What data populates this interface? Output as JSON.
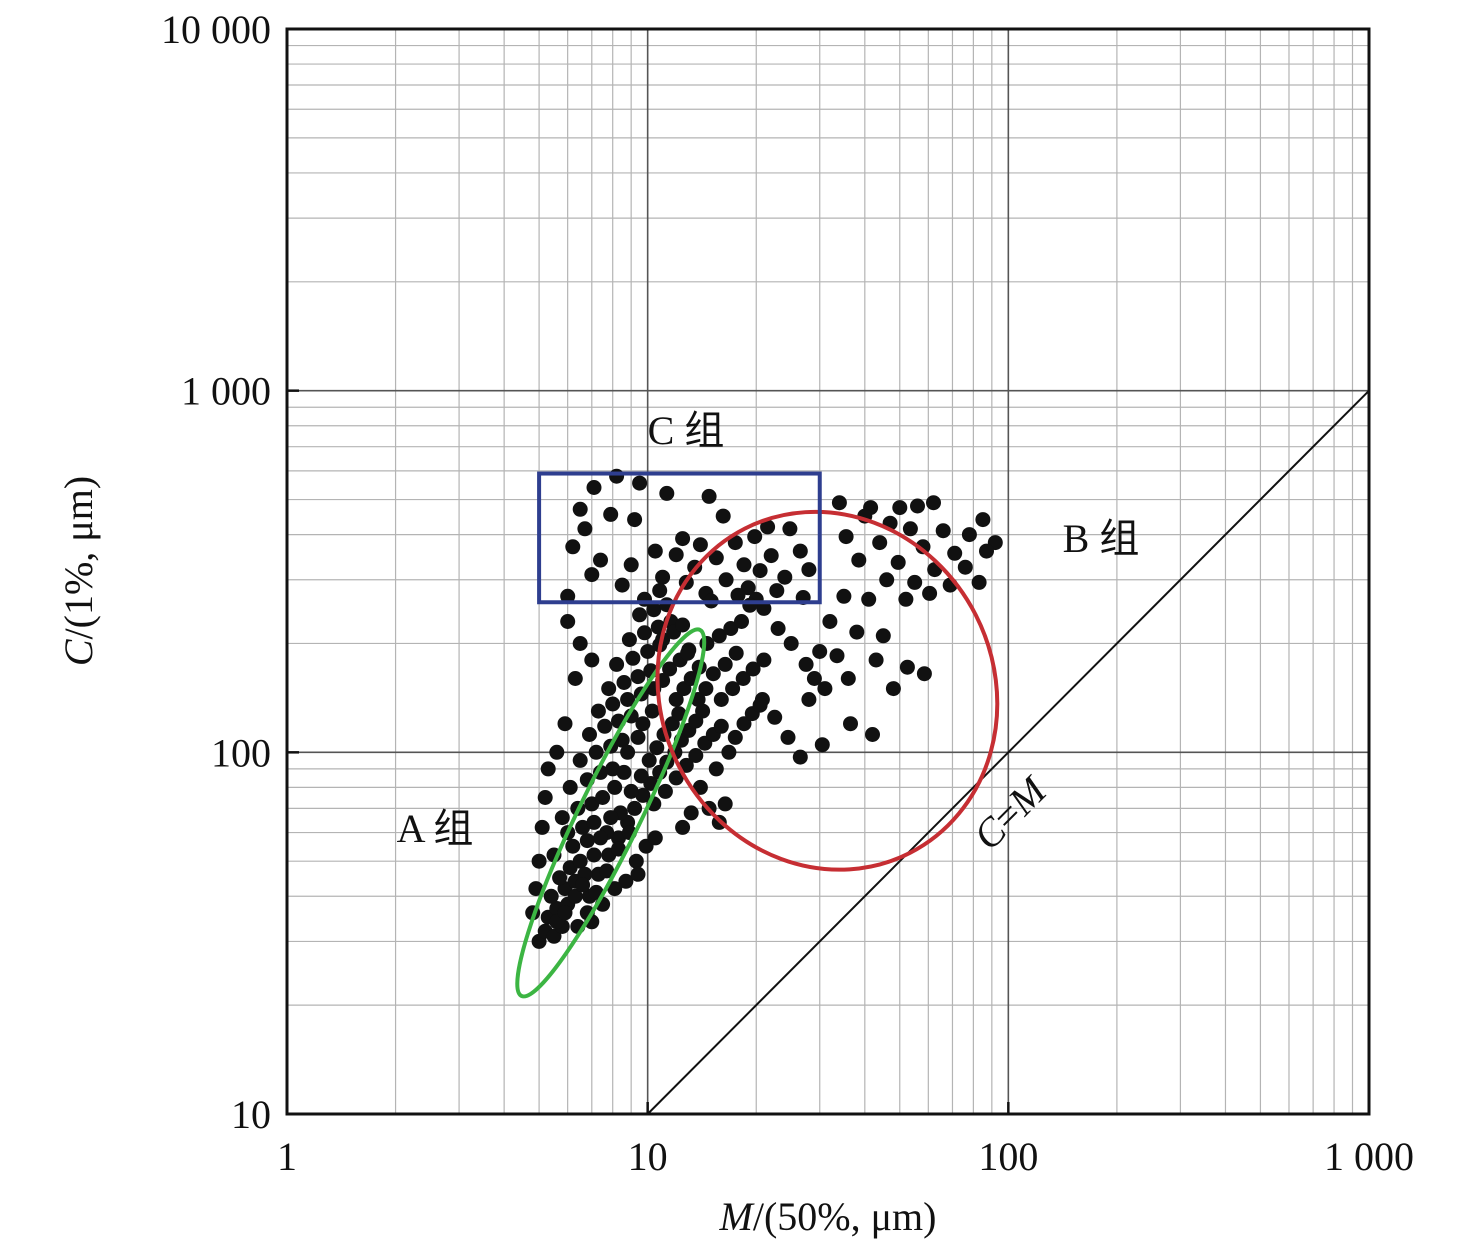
{
  "chart_data": {
    "type": "scatter",
    "title": "",
    "x_scale": "log",
    "y_scale": "log",
    "xlim": [
      1,
      1000
    ],
    "ylim": [
      10,
      10000
    ],
    "grid": true,
    "x_ticks": [
      {
        "value": 1,
        "label": "1"
      },
      {
        "value": 10,
        "label": "10"
      },
      {
        "value": 100,
        "label": "100"
      },
      {
        "value": 1000,
        "label": "1 000"
      }
    ],
    "y_ticks": [
      {
        "value": 10,
        "label": "10"
      },
      {
        "value": 100,
        "label": "100"
      },
      {
        "value": 1000,
        "label": "1 000"
      },
      {
        "value": 10000,
        "label": "10 000"
      }
    ],
    "xlabel": {
      "var": "M",
      "rest": "/(50%, μm)"
    },
    "ylabel": {
      "var": "C",
      "rest": "/(1%, μm)"
    },
    "reference_line": {
      "label_c": "C",
      "label_eq": "=",
      "label_m": "M",
      "from": [
        10,
        10
      ],
      "to": [
        1000,
        1000
      ]
    },
    "groups": [
      {
        "id": "A",
        "label": "A 组",
        "shape": "ellipse",
        "color": "#3cb543",
        "center": [
          7.9,
          68
        ],
        "x_range": [
          4.6,
          13.6
        ],
        "y_range": [
          23,
          235
        ],
        "tilt_deg": -64
      },
      {
        "id": "B",
        "label": "B 组",
        "shape": "ellipse",
        "color": "#c62e33",
        "center": [
          31.5,
          148
        ],
        "x_range": [
          11.2,
          98
        ],
        "y_range": [
          49,
          478
        ],
        "tilt_deg": -27
      },
      {
        "id": "C",
        "label": "C 组",
        "shape": "rectangle",
        "color": "#2e3e8f",
        "x_range": [
          5,
          30
        ],
        "y_range": [
          260,
          590
        ]
      }
    ],
    "series": [
      {
        "marker": "circle",
        "color": "#111111",
        "points": [
          [
            8.2,
            580
          ],
          [
            7.1,
            540
          ],
          [
            9.5,
            555
          ],
          [
            11.3,
            520
          ],
          [
            14.8,
            510
          ],
          [
            6.5,
            470
          ],
          [
            7.9,
            455
          ],
          [
            9.2,
            440
          ],
          [
            16.2,
            450
          ],
          [
            21.5,
            420
          ],
          [
            24.8,
            415
          ],
          [
            6.7,
            415
          ],
          [
            12.5,
            390
          ],
          [
            14.0,
            375
          ],
          [
            17.5,
            380
          ],
          [
            19.8,
            395
          ],
          [
            6.2,
            370
          ],
          [
            10.5,
            360
          ],
          [
            12.0,
            352
          ],
          [
            15.5,
            345
          ],
          [
            22.0,
            350
          ],
          [
            26.5,
            360
          ],
          [
            7.4,
            340
          ],
          [
            9.0,
            330
          ],
          [
            13.5,
            325
          ],
          [
            18.5,
            330
          ],
          [
            20.5,
            318
          ],
          [
            28.0,
            320
          ],
          [
            7.0,
            310
          ],
          [
            11.0,
            305
          ],
          [
            16.5,
            300
          ],
          [
            24.0,
            305
          ],
          [
            8.5,
            290
          ],
          [
            12.8,
            295
          ],
          [
            19.0,
            285
          ],
          [
            22.8,
            280
          ],
          [
            6.0,
            270
          ],
          [
            9.8,
            265
          ],
          [
            14.5,
            275
          ],
          [
            17.8,
            272
          ],
          [
            27.0,
            268
          ],
          [
            10.8,
            280
          ],
          [
            15.0,
            262
          ],
          [
            20.0,
            265
          ],
          [
            34.0,
            490
          ],
          [
            41.5,
            475
          ],
          [
            50.0,
            475
          ],
          [
            56.0,
            480
          ],
          [
            62.0,
            490
          ],
          [
            85.0,
            440
          ],
          [
            40.0,
            450
          ],
          [
            47.0,
            430
          ],
          [
            53.5,
            415
          ],
          [
            66.0,
            410
          ],
          [
            78.0,
            400
          ],
          [
            92.0,
            380
          ],
          [
            35.5,
            395
          ],
          [
            44.0,
            380
          ],
          [
            58.0,
            370
          ],
          [
            71.0,
            355
          ],
          [
            87.0,
            360
          ],
          [
            38.5,
            340
          ],
          [
            49.5,
            335
          ],
          [
            62.5,
            320
          ],
          [
            76.0,
            325
          ],
          [
            46.0,
            300
          ],
          [
            55.0,
            295
          ],
          [
            69.0,
            290
          ],
          [
            35.0,
            270
          ],
          [
            41.0,
            265
          ],
          [
            52.0,
            265
          ],
          [
            60.5,
            275
          ],
          [
            83.0,
            295
          ],
          [
            32.0,
            230
          ],
          [
            38.0,
            215
          ],
          [
            45.0,
            210
          ],
          [
            43.0,
            180
          ],
          [
            52.5,
            172
          ],
          [
            36.0,
            160
          ],
          [
            48.0,
            150
          ],
          [
            58.5,
            165
          ],
          [
            31.0,
            150
          ],
          [
            28.0,
            140
          ],
          [
            36.5,
            120
          ],
          [
            42.0,
            112
          ],
          [
            30.5,
            105
          ],
          [
            22.5,
            125
          ],
          [
            24.5,
            110
          ],
          [
            26.5,
            97
          ],
          [
            20.8,
            140
          ],
          [
            27.5,
            175
          ],
          [
            25.0,
            200
          ],
          [
            23.0,
            220
          ],
          [
            21.0,
            250
          ],
          [
            19.2,
            255
          ],
          [
            30.0,
            190
          ],
          [
            33.5,
            185
          ],
          [
            29.0,
            160
          ],
          [
            5.0,
            30
          ],
          [
            5.2,
            32
          ],
          [
            5.5,
            31
          ],
          [
            5.8,
            33
          ],
          [
            5.3,
            35
          ],
          [
            5.6,
            37
          ],
          [
            6.0,
            38
          ],
          [
            5.4,
            40
          ],
          [
            5.9,
            42
          ],
          [
            6.3,
            44
          ],
          [
            5.7,
            45
          ],
          [
            6.1,
            48
          ],
          [
            6.5,
            50
          ],
          [
            5.5,
            52
          ],
          [
            6.2,
            55
          ],
          [
            6.8,
            57
          ],
          [
            6.0,
            60
          ],
          [
            6.6,
            62
          ],
          [
            7.1,
            64
          ],
          [
            5.8,
            66
          ],
          [
            6.4,
            70
          ],
          [
            7.0,
            72
          ],
          [
            7.5,
            75
          ],
          [
            6.1,
            80
          ],
          [
            6.8,
            84
          ],
          [
            7.4,
            88
          ],
          [
            8.0,
            90
          ],
          [
            6.5,
            95
          ],
          [
            7.2,
            100
          ],
          [
            7.9,
            104
          ],
          [
            8.5,
            108
          ],
          [
            6.9,
            112
          ],
          [
            7.6,
            118
          ],
          [
            8.3,
            122
          ],
          [
            9.0,
            126
          ],
          [
            7.3,
            130
          ],
          [
            8.0,
            136
          ],
          [
            8.8,
            140
          ],
          [
            9.6,
            145
          ],
          [
            7.8,
            150
          ],
          [
            8.6,
            156
          ],
          [
            9.4,
            162
          ],
          [
            10.2,
            168
          ],
          [
            8.2,
            175
          ],
          [
            9.1,
            182
          ],
          [
            10.0,
            190
          ],
          [
            10.8,
            198
          ],
          [
            8.9,
            205
          ],
          [
            9.8,
            214
          ],
          [
            10.7,
            222
          ],
          [
            11.6,
            230
          ],
          [
            9.5,
            240
          ],
          [
            10.4,
            248
          ],
          [
            11.3,
            256
          ],
          [
            7.0,
            180
          ],
          [
            6.5,
            200
          ],
          [
            6.0,
            230
          ],
          [
            6.3,
            160
          ],
          [
            5.9,
            120
          ],
          [
            5.6,
            100
          ],
          [
            5.3,
            90
          ],
          [
            5.2,
            75
          ],
          [
            5.1,
            62
          ],
          [
            5.0,
            50
          ],
          [
            4.9,
            42
          ],
          [
            4.8,
            36
          ],
          [
            6.9,
            40
          ],
          [
            7.3,
            46
          ],
          [
            7.8,
            52
          ],
          [
            8.3,
            58
          ],
          [
            8.8,
            64
          ],
          [
            9.2,
            70
          ],
          [
            9.7,
            76
          ],
          [
            10.2,
            82
          ],
          [
            10.8,
            88
          ],
          [
            11.3,
            94
          ],
          [
            11.9,
            100
          ],
          [
            12.4,
            108
          ],
          [
            13.0,
            115
          ],
          [
            13.6,
            122
          ],
          [
            14.2,
            130
          ],
          [
            12.0,
            140
          ],
          [
            12.6,
            150
          ],
          [
            13.2,
            160
          ],
          [
            11.5,
            170
          ],
          [
            12.3,
            180
          ],
          [
            13.0,
            192
          ],
          [
            11.0,
            205
          ],
          [
            11.8,
            215
          ],
          [
            12.5,
            225
          ],
          [
            7.7,
            60
          ],
          [
            8.4,
            68
          ],
          [
            9.0,
            78
          ],
          [
            9.6,
            86
          ],
          [
            10.1,
            95
          ],
          [
            10.6,
            103
          ],
          [
            11.1,
            112
          ],
          [
            11.7,
            120
          ],
          [
            12.2,
            128
          ],
          [
            8.7,
            44
          ],
          [
            9.3,
            50
          ],
          [
            8.1,
            42
          ],
          [
            7.5,
            38
          ],
          [
            7.0,
            34
          ],
          [
            6.4,
            33
          ],
          [
            6.8,
            36
          ],
          [
            7.2,
            41
          ],
          [
            7.7,
            47
          ],
          [
            8.3,
            54
          ],
          [
            8.9,
            60
          ],
          [
            10.4,
            72
          ],
          [
            11.2,
            78
          ],
          [
            12.0,
            85
          ],
          [
            12.8,
            92
          ],
          [
            13.6,
            98
          ],
          [
            14.4,
            106
          ],
          [
            15.2,
            112
          ],
          [
            16.0,
            118
          ],
          [
            14.0,
            80
          ],
          [
            15.5,
            90
          ],
          [
            16.8,
            100
          ],
          [
            17.5,
            110
          ],
          [
            18.5,
            120
          ],
          [
            19.5,
            128
          ],
          [
            20.5,
            135
          ],
          [
            16.0,
            140
          ],
          [
            17.2,
            150
          ],
          [
            18.4,
            160
          ],
          [
            19.6,
            170
          ],
          [
            21.0,
            180
          ],
          [
            15.2,
            165
          ],
          [
            16.4,
            175
          ],
          [
            17.6,
            188
          ],
          [
            14.6,
            200
          ],
          [
            15.8,
            210
          ],
          [
            17.0,
            220
          ],
          [
            18.2,
            230
          ],
          [
            13.2,
            68
          ],
          [
            12.5,
            62
          ],
          [
            14.8,
            70
          ],
          [
            15.8,
            64
          ],
          [
            16.4,
            72
          ],
          [
            9.9,
            55
          ],
          [
            9.4,
            46
          ],
          [
            10.5,
            58
          ],
          [
            13.8,
            140
          ],
          [
            14.5,
            150
          ],
          [
            13.9,
            172
          ],
          [
            12.9,
            188
          ],
          [
            10.4,
            150
          ],
          [
            11.0,
            158
          ],
          [
            9.7,
            120
          ],
          [
            10.3,
            130
          ],
          [
            8.8,
            100
          ],
          [
            9.4,
            110
          ],
          [
            8.1,
            80
          ],
          [
            8.6,
            88
          ],
          [
            7.4,
            58
          ],
          [
            7.9,
            66
          ],
          [
            6.7,
            46
          ],
          [
            7.1,
            52
          ],
          [
            6.3,
            40
          ],
          [
            6.6,
            43
          ],
          [
            5.6,
            34
          ],
          [
            5.9,
            36
          ]
        ]
      }
    ]
  }
}
